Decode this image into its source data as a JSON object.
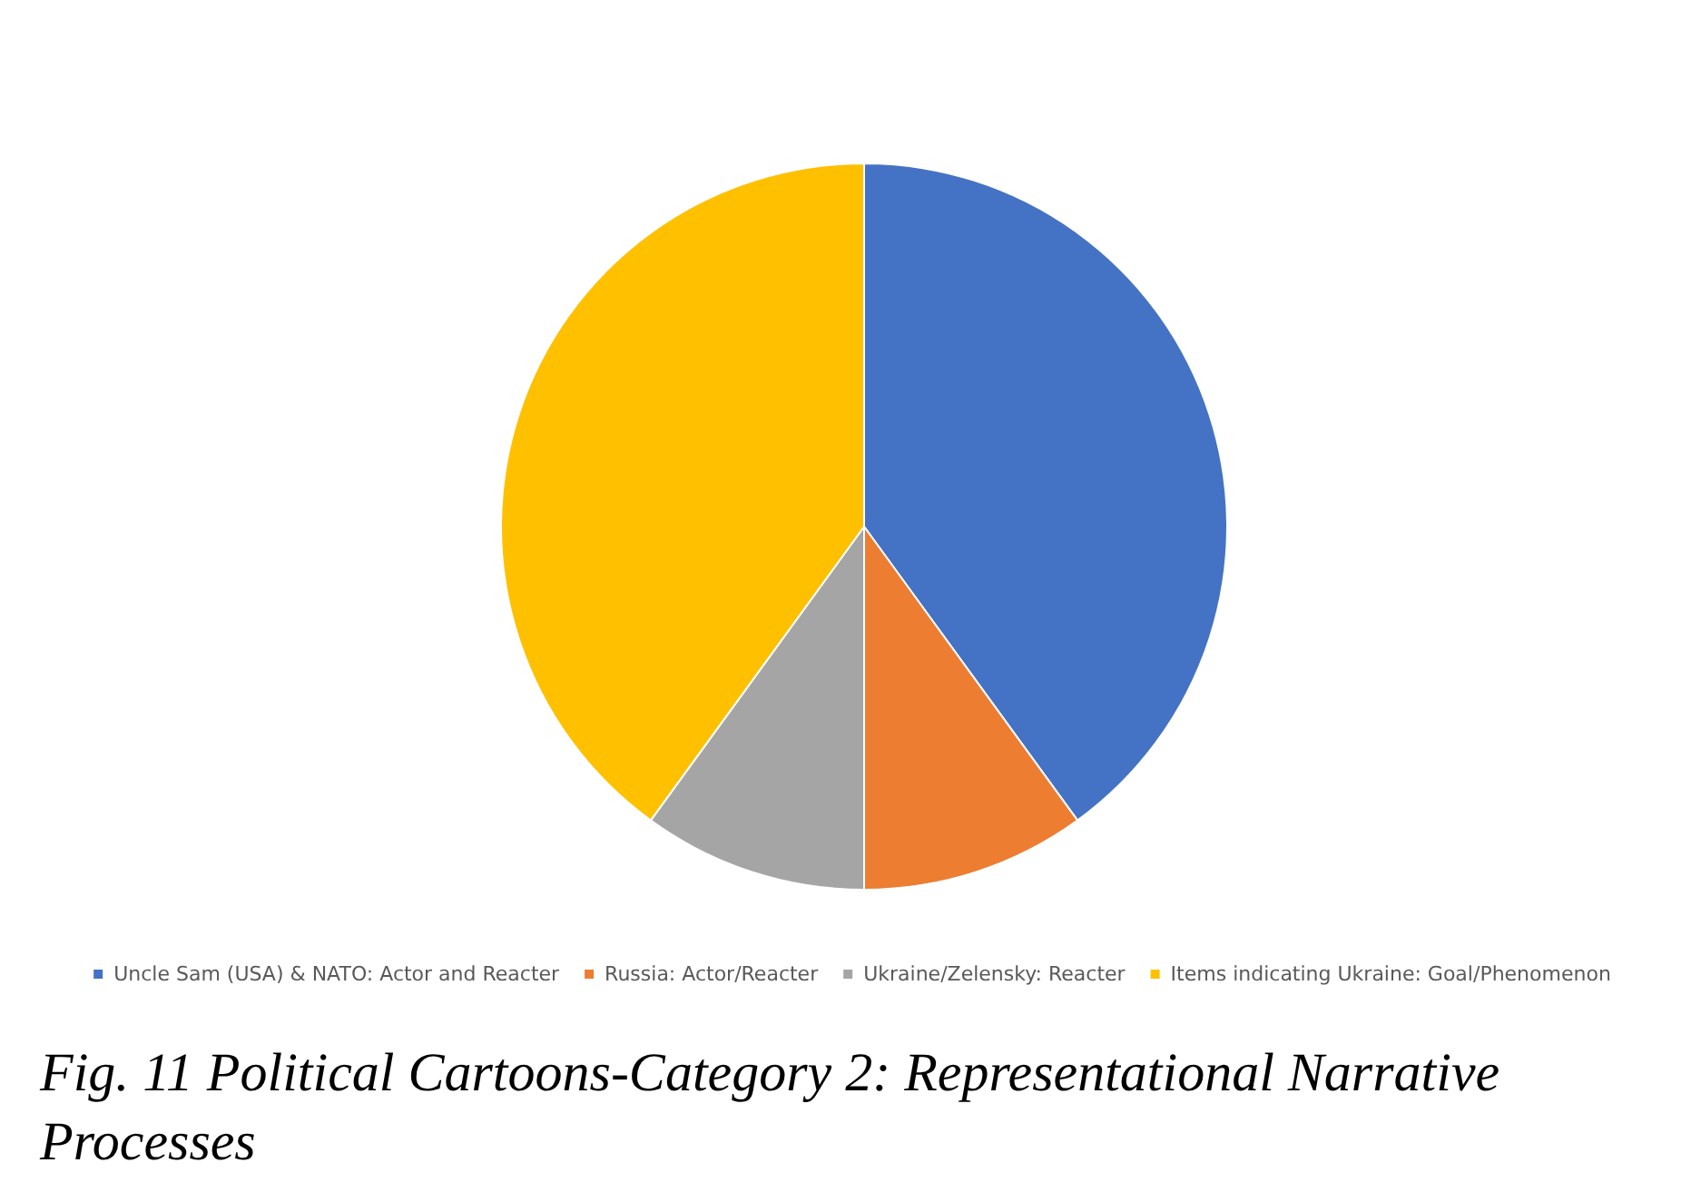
{
  "chart_data": {
    "type": "pie",
    "categories": [
      "Uncle Sam (USA) & NATO: Actor and Reacter",
      "Russia: Actor/Reacter",
      "Ukraine/Zelensky: Reacter",
      "Items indicating Ukraine: Goal/Phenomenon"
    ],
    "values": [
      40,
      10,
      10,
      40
    ],
    "colors": [
      "#4472c4",
      "#ed7d31",
      "#a5a5a5",
      "#ffc000"
    ],
    "legend": "bottom",
    "annotations": [
      "Fig. 11 Political Cartoons-Category 2: Representational Narrative Processes"
    ]
  }
}
